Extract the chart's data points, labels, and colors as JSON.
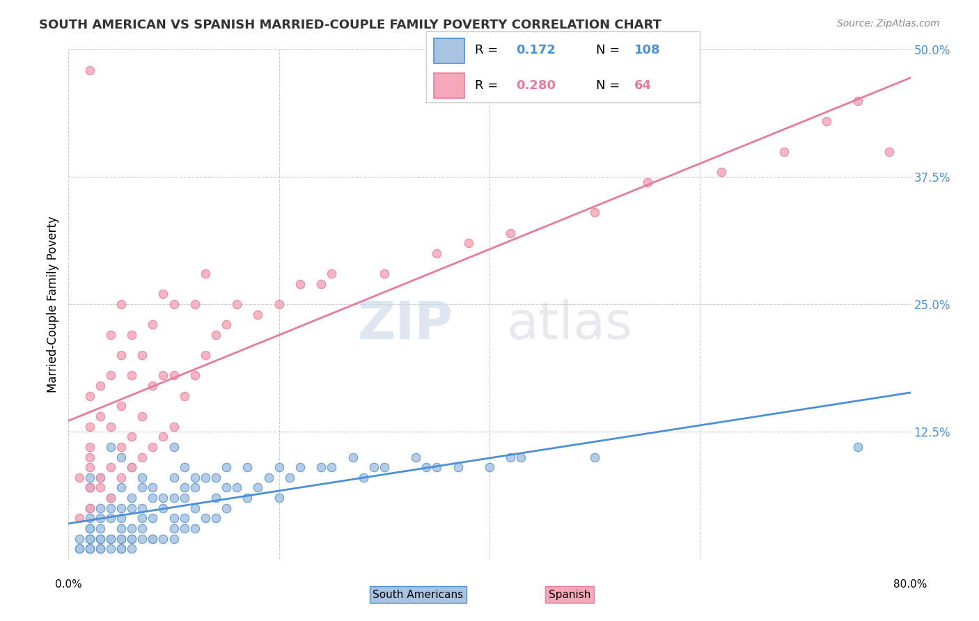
{
  "title": "SOUTH AMERICAN VS SPANISH MARRIED-COUPLE FAMILY POVERTY CORRELATION CHART",
  "source": "Source: ZipAtlas.com",
  "ylabel": "Married-Couple Family Poverty",
  "xlim": [
    0,
    0.8
  ],
  "ylim": [
    0,
    0.5
  ],
  "ytick_labels_right": [
    "50.0%",
    "37.5%",
    "25.0%",
    "12.5%",
    ""
  ],
  "ytick_vals": [
    0.5,
    0.375,
    0.25,
    0.125,
    0.0
  ],
  "south_american_R": 0.172,
  "south_american_N": 108,
  "spanish_R": 0.28,
  "spanish_N": 64,
  "sa_color": "#a8c4e0",
  "sp_color": "#f4a8b8",
  "sa_line_color": "#4a90d9",
  "sp_line_color": "#e87a9a",
  "background_color": "#ffffff",
  "grid_color": "#cccccc",
  "title_color": "#333333",
  "right_label_color": "#4a90d9",
  "south_americans_label": "South Americans",
  "spanish_label": "Spanish",
  "sa_x": [
    0.01,
    0.01,
    0.01,
    0.02,
    0.02,
    0.02,
    0.02,
    0.02,
    0.02,
    0.02,
    0.02,
    0.02,
    0.02,
    0.02,
    0.02,
    0.02,
    0.03,
    0.03,
    0.03,
    0.03,
    0.03,
    0.03,
    0.03,
    0.03,
    0.04,
    0.04,
    0.04,
    0.04,
    0.04,
    0.04,
    0.04,
    0.05,
    0.05,
    0.05,
    0.05,
    0.05,
    0.05,
    0.05,
    0.05,
    0.05,
    0.06,
    0.06,
    0.06,
    0.06,
    0.06,
    0.06,
    0.06,
    0.07,
    0.07,
    0.07,
    0.07,
    0.07,
    0.07,
    0.08,
    0.08,
    0.08,
    0.08,
    0.08,
    0.09,
    0.09,
    0.09,
    0.1,
    0.1,
    0.1,
    0.1,
    0.1,
    0.1,
    0.11,
    0.11,
    0.11,
    0.11,
    0.11,
    0.12,
    0.12,
    0.12,
    0.12,
    0.13,
    0.13,
    0.14,
    0.14,
    0.14,
    0.15,
    0.15,
    0.15,
    0.16,
    0.17,
    0.17,
    0.18,
    0.19,
    0.2,
    0.2,
    0.21,
    0.22,
    0.24,
    0.25,
    0.27,
    0.28,
    0.29,
    0.3,
    0.33,
    0.34,
    0.35,
    0.37,
    0.4,
    0.42,
    0.43,
    0.5,
    0.75
  ],
  "sa_y": [
    0.01,
    0.01,
    0.02,
    0.01,
    0.01,
    0.01,
    0.02,
    0.02,
    0.02,
    0.03,
    0.03,
    0.04,
    0.05,
    0.07,
    0.07,
    0.08,
    0.01,
    0.01,
    0.02,
    0.02,
    0.03,
    0.04,
    0.05,
    0.08,
    0.01,
    0.02,
    0.02,
    0.04,
    0.05,
    0.06,
    0.11,
    0.01,
    0.01,
    0.02,
    0.02,
    0.03,
    0.04,
    0.05,
    0.07,
    0.1,
    0.01,
    0.02,
    0.02,
    0.03,
    0.05,
    0.06,
    0.09,
    0.02,
    0.03,
    0.04,
    0.05,
    0.07,
    0.08,
    0.02,
    0.02,
    0.04,
    0.06,
    0.07,
    0.02,
    0.05,
    0.06,
    0.02,
    0.03,
    0.04,
    0.06,
    0.08,
    0.11,
    0.03,
    0.04,
    0.06,
    0.07,
    0.09,
    0.03,
    0.05,
    0.07,
    0.08,
    0.04,
    0.08,
    0.04,
    0.06,
    0.08,
    0.05,
    0.07,
    0.09,
    0.07,
    0.06,
    0.09,
    0.07,
    0.08,
    0.06,
    0.09,
    0.08,
    0.09,
    0.09,
    0.09,
    0.1,
    0.08,
    0.09,
    0.09,
    0.1,
    0.09,
    0.09,
    0.09,
    0.09,
    0.1,
    0.1,
    0.1,
    0.11
  ],
  "sp_x": [
    0.02,
    0.01,
    0.01,
    0.02,
    0.02,
    0.02,
    0.02,
    0.02,
    0.02,
    0.02,
    0.03,
    0.03,
    0.03,
    0.03,
    0.04,
    0.04,
    0.04,
    0.04,
    0.04,
    0.05,
    0.05,
    0.05,
    0.05,
    0.05,
    0.06,
    0.06,
    0.06,
    0.06,
    0.07,
    0.07,
    0.07,
    0.08,
    0.08,
    0.08,
    0.09,
    0.09,
    0.09,
    0.1,
    0.1,
    0.1,
    0.11,
    0.12,
    0.12,
    0.13,
    0.13,
    0.14,
    0.15,
    0.16,
    0.18,
    0.2,
    0.22,
    0.24,
    0.25,
    0.3,
    0.35,
    0.38,
    0.42,
    0.5,
    0.55,
    0.62,
    0.68,
    0.72,
    0.75,
    0.78
  ],
  "sp_y": [
    0.48,
    0.04,
    0.08,
    0.05,
    0.07,
    0.09,
    0.1,
    0.11,
    0.13,
    0.16,
    0.07,
    0.08,
    0.14,
    0.17,
    0.06,
    0.09,
    0.13,
    0.18,
    0.22,
    0.08,
    0.11,
    0.15,
    0.2,
    0.25,
    0.09,
    0.12,
    0.18,
    0.22,
    0.1,
    0.14,
    0.2,
    0.11,
    0.17,
    0.23,
    0.12,
    0.18,
    0.26,
    0.13,
    0.18,
    0.25,
    0.16,
    0.18,
    0.25,
    0.2,
    0.28,
    0.22,
    0.23,
    0.25,
    0.24,
    0.25,
    0.27,
    0.27,
    0.28,
    0.28,
    0.3,
    0.31,
    0.32,
    0.34,
    0.37,
    0.38,
    0.4,
    0.43,
    0.45,
    0.4
  ]
}
